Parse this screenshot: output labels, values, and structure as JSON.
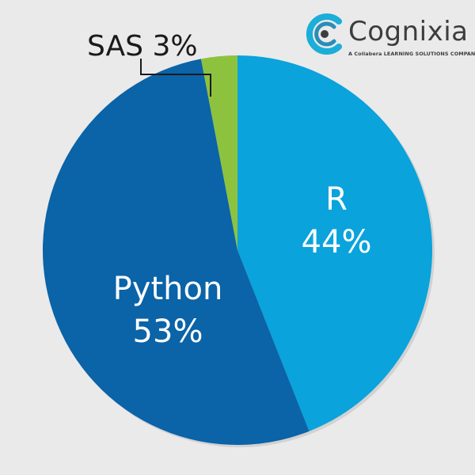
{
  "chart_data": {
    "type": "pie",
    "slices": [
      {
        "name": "R",
        "value_label": "44%",
        "value": 44,
        "color": "#0aa3dc",
        "label_color": "#ffffff"
      },
      {
        "name": "Python",
        "value_label": "53%",
        "value": 53,
        "color": "#0b63a8",
        "label_color": "#ffffff"
      },
      {
        "name": "SAS",
        "value_label": "3%",
        "value": 3,
        "color": "#8dc23e",
        "label_color": "#1a1a1a",
        "callout": true
      }
    ],
    "start_angle": "12 o'clock",
    "direction": "clockwise"
  },
  "logo": {
    "name": "Cognixia",
    "tagline": "A Collabera LEARNING SOLUTIONS COMPANY",
    "colors": {
      "ring": "#1baed8",
      "dark_ring": "#2a8db8",
      "text": "#3d3d3d"
    }
  },
  "background_color": "#eaeaea"
}
